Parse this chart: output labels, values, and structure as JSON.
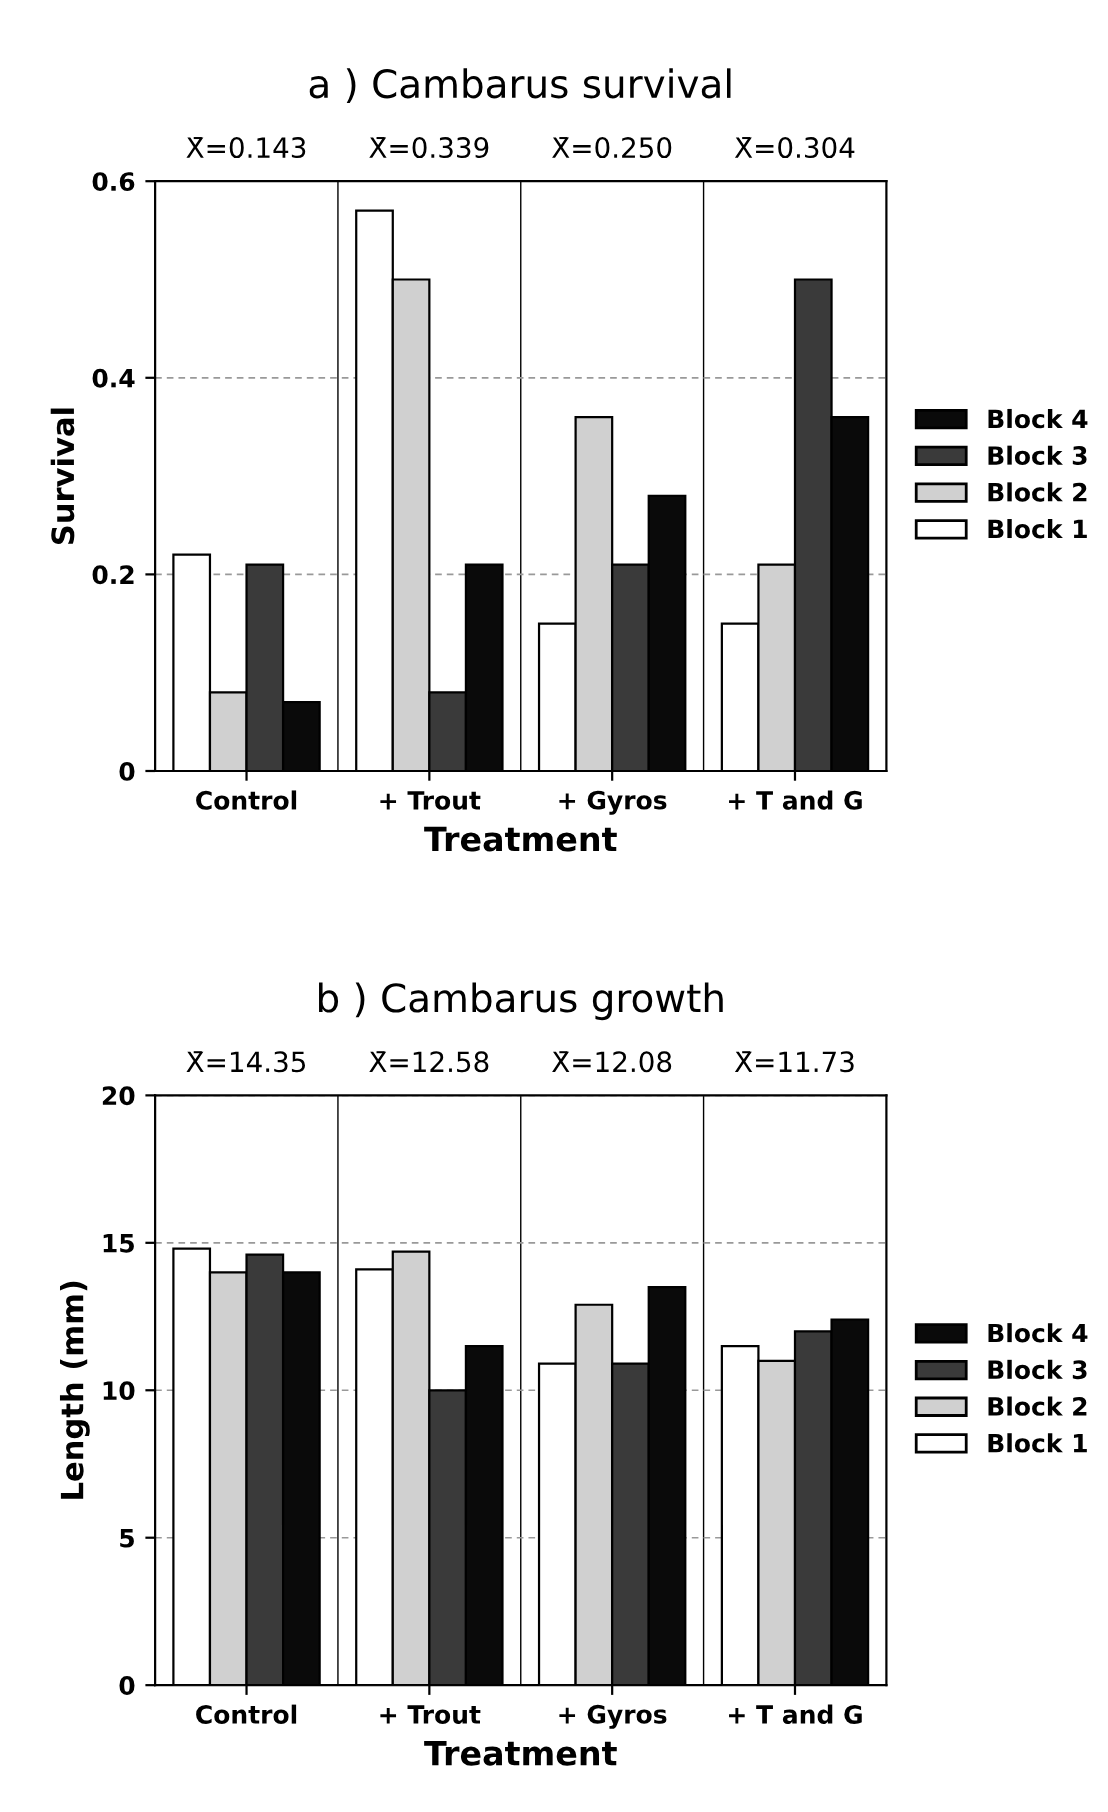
{
  "chart_data": [
    {
      "type": "bar",
      "title": "a ) Cambarus survival",
      "xlabel": "Treatment",
      "ylabel": "Survival",
      "categories": [
        "Control",
        "+ Trout",
        "+ Gyros",
        "+ T and G"
      ],
      "series": [
        {
          "name": "Block 1",
          "color": "#ffffff",
          "values": [
            0.22,
            0.57,
            0.15,
            0.15
          ]
        },
        {
          "name": "Block 2",
          "color": "#d0d0d0",
          "values": [
            0.08,
            0.5,
            0.36,
            0.21
          ]
        },
        {
          "name": "Block 3",
          "color": "#3a3a3a",
          "values": [
            0.21,
            0.08,
            0.21,
            0.5
          ]
        },
        {
          "name": "Block 4",
          "color": "#0a0a0a",
          "values": [
            0.07,
            0.21,
            0.28,
            0.36
          ]
        }
      ],
      "annotations": [
        "X̄=0.143",
        "X̄=0.339",
        "X̄=0.250",
        "X̄=0.304"
      ],
      "ylim": [
        0,
        0.6
      ],
      "yticks": [
        0,
        0.2,
        0.4,
        0.6
      ],
      "grid": "y",
      "legend": "right"
    },
    {
      "type": "bar",
      "title": "b ) Cambarus growth",
      "xlabel": "Treatment",
      "ylabel": "Length (mm)",
      "categories": [
        "Control",
        "+ Trout",
        "+ Gyros",
        "+ T and G"
      ],
      "series": [
        {
          "name": "Block 1",
          "color": "#ffffff",
          "values": [
            14.8,
            14.1,
            10.9,
            11.5
          ]
        },
        {
          "name": "Block 2",
          "color": "#d0d0d0",
          "values": [
            14.0,
            14.7,
            12.9,
            11.0
          ]
        },
        {
          "name": "Block 3",
          "color": "#3a3a3a",
          "values": [
            14.6,
            10.0,
            10.9,
            12.0
          ]
        },
        {
          "name": "Block 4",
          "color": "#0a0a0a",
          "values": [
            14.0,
            11.5,
            13.5,
            12.4
          ]
        }
      ],
      "annotations": [
        "X̄=14.35",
        "X̄=12.58",
        "X̄=12.08",
        "X̄=11.73"
      ],
      "ylim": [
        0,
        20
      ],
      "yticks": [
        0,
        5,
        10,
        15,
        20
      ],
      "grid": "y",
      "legend": "right"
    }
  ]
}
